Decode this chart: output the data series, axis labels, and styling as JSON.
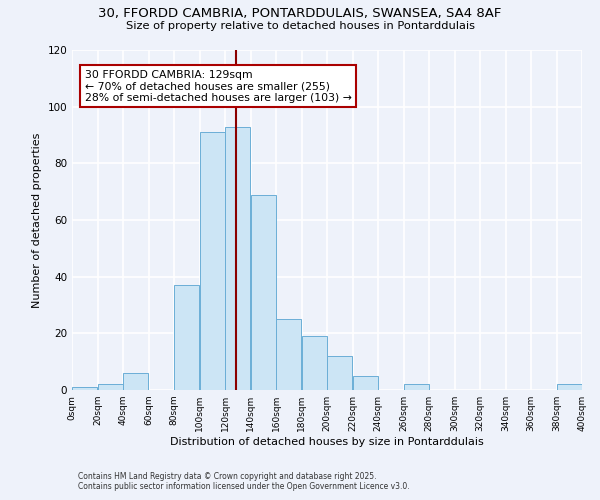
{
  "title_line1": "30, FFORDD CAMBRIA, PONTARDDULAIS, SWANSEA, SA4 8AF",
  "title_line2": "Size of property relative to detached houses in Pontarddulais",
  "xlabel": "Distribution of detached houses by size in Pontarddulais",
  "ylabel": "Number of detached properties",
  "bin_edges": [
    0,
    20,
    40,
    60,
    80,
    100,
    120,
    140,
    160,
    180,
    200,
    220,
    240,
    260,
    280,
    300,
    320,
    340,
    360,
    380,
    400
  ],
  "bin_counts": [
    1,
    2,
    6,
    0,
    37,
    91,
    93,
    69,
    25,
    19,
    12,
    5,
    0,
    2,
    0,
    0,
    0,
    0,
    0,
    2
  ],
  "bar_facecolor": "#cce5f5",
  "bar_edgecolor": "#6baed6",
  "vline_x": 129,
  "vline_color": "#8b0000",
  "annotation_title": "30 FFORDD CAMBRIA: 129sqm",
  "annotation_line2": "← 70% of detached houses are smaller (255)",
  "annotation_line3": "28% of semi-detached houses are larger (103) →",
  "annotation_box_edgecolor": "#aa0000",
  "annotation_box_facecolor": "#ffffff",
  "background_color": "#eef2fa",
  "grid_color": "#ffffff",
  "ylim": [
    0,
    120
  ],
  "xlim": [
    0,
    400
  ],
  "tick_labels": [
    "0sqm",
    "20sqm",
    "40sqm",
    "60sqm",
    "80sqm",
    "100sqm",
    "120sqm",
    "140sqm",
    "160sqm",
    "180sqm",
    "200sqm",
    "220sqm",
    "240sqm",
    "260sqm",
    "280sqm",
    "300sqm",
    "320sqm",
    "340sqm",
    "360sqm",
    "380sqm",
    "400sqm"
  ],
  "footer_line1": "Contains HM Land Registry data © Crown copyright and database right 2025.",
  "footer_line2": "Contains public sector information licensed under the Open Government Licence v3.0."
}
